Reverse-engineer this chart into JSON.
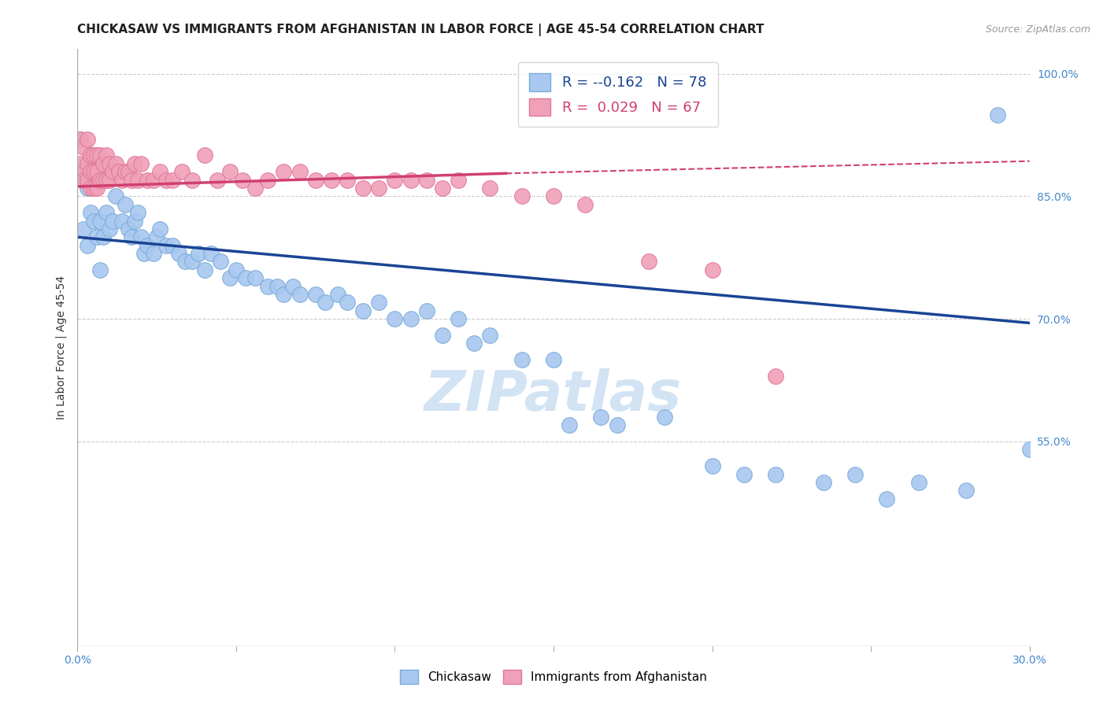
{
  "title": "CHICKASAW VS IMMIGRANTS FROM AFGHANISTAN IN LABOR FORCE | AGE 45-54 CORRELATION CHART",
  "source": "Source: ZipAtlas.com",
  "ylabel": "In Labor Force | Age 45-54",
  "xlabel": "",
  "xlim": [
    0.0,
    0.3
  ],
  "ylim": [
    0.3,
    1.03
  ],
  "xticks": [
    0.0,
    0.05,
    0.1,
    0.15,
    0.2,
    0.25,
    0.3
  ],
  "xticklabels": [
    "0.0%",
    "",
    "",
    "",
    "",
    "",
    "30.0%"
  ],
  "yticks_right": [
    0.55,
    0.7,
    0.85,
    1.0
  ],
  "ytick_right_labels": [
    "55.0%",
    "70.0%",
    "85.0%",
    "100.0%"
  ],
  "hlines": [
    0.55,
    0.7,
    0.85,
    1.0
  ],
  "legend_blue_r": "-0.162",
  "legend_blue_n": "78",
  "legend_pink_r": "0.029",
  "legend_pink_n": "67",
  "blue_color": "#A8C8F0",
  "pink_color": "#F0A0B8",
  "blue_edge_color": "#7AAAD8",
  "pink_edge_color": "#E07898",
  "blue_line_color": "#1A4494",
  "pink_line_color": "#D04070",
  "blue_trendline": [
    0.0,
    0.8,
    0.3,
    0.695
  ],
  "pink_trendline_solid": [
    0.0,
    0.862,
    0.135,
    0.878
  ],
  "pink_trendline_dashed": [
    0.135,
    0.878,
    0.3,
    0.893
  ],
  "blue_scatter_x": [
    0.001,
    0.002,
    0.002,
    0.003,
    0.003,
    0.004,
    0.004,
    0.005,
    0.005,
    0.006,
    0.006,
    0.007,
    0.007,
    0.008,
    0.009,
    0.01,
    0.011,
    0.012,
    0.013,
    0.014,
    0.015,
    0.016,
    0.017,
    0.018,
    0.019,
    0.02,
    0.021,
    0.022,
    0.024,
    0.025,
    0.026,
    0.028,
    0.03,
    0.032,
    0.034,
    0.036,
    0.038,
    0.04,
    0.042,
    0.045,
    0.048,
    0.05,
    0.053,
    0.056,
    0.06,
    0.063,
    0.065,
    0.068,
    0.07,
    0.075,
    0.078,
    0.082,
    0.085,
    0.09,
    0.095,
    0.1,
    0.105,
    0.11,
    0.115,
    0.12,
    0.125,
    0.13,
    0.14,
    0.15,
    0.155,
    0.165,
    0.17,
    0.185,
    0.2,
    0.21,
    0.22,
    0.235,
    0.245,
    0.255,
    0.265,
    0.28,
    0.29,
    0.3
  ],
  "blue_scatter_y": [
    0.92,
    0.87,
    0.81,
    0.86,
    0.79,
    0.87,
    0.83,
    0.88,
    0.82,
    0.87,
    0.8,
    0.82,
    0.76,
    0.8,
    0.83,
    0.81,
    0.82,
    0.85,
    0.88,
    0.82,
    0.84,
    0.81,
    0.8,
    0.82,
    0.83,
    0.8,
    0.78,
    0.79,
    0.78,
    0.8,
    0.81,
    0.79,
    0.79,
    0.78,
    0.77,
    0.77,
    0.78,
    0.76,
    0.78,
    0.77,
    0.75,
    0.76,
    0.75,
    0.75,
    0.74,
    0.74,
    0.73,
    0.74,
    0.73,
    0.73,
    0.72,
    0.73,
    0.72,
    0.71,
    0.72,
    0.7,
    0.7,
    0.71,
    0.68,
    0.7,
    0.67,
    0.68,
    0.65,
    0.65,
    0.57,
    0.58,
    0.57,
    0.58,
    0.52,
    0.51,
    0.51,
    0.5,
    0.51,
    0.48,
    0.5,
    0.49,
    0.95,
    0.54
  ],
  "pink_scatter_x": [
    0.001,
    0.001,
    0.002,
    0.002,
    0.002,
    0.003,
    0.003,
    0.003,
    0.004,
    0.004,
    0.004,
    0.005,
    0.005,
    0.005,
    0.006,
    0.006,
    0.006,
    0.007,
    0.007,
    0.008,
    0.008,
    0.009,
    0.009,
    0.01,
    0.01,
    0.011,
    0.012,
    0.013,
    0.014,
    0.015,
    0.016,
    0.017,
    0.018,
    0.019,
    0.02,
    0.022,
    0.024,
    0.026,
    0.028,
    0.03,
    0.033,
    0.036,
    0.04,
    0.044,
    0.048,
    0.052,
    0.056,
    0.06,
    0.065,
    0.07,
    0.075,
    0.08,
    0.085,
    0.09,
    0.095,
    0.1,
    0.105,
    0.11,
    0.115,
    0.12,
    0.13,
    0.14,
    0.15,
    0.16,
    0.18,
    0.2,
    0.22
  ],
  "pink_scatter_y": [
    0.89,
    0.92,
    0.88,
    0.91,
    0.87,
    0.89,
    0.92,
    0.87,
    0.9,
    0.88,
    0.86,
    0.9,
    0.88,
    0.86,
    0.9,
    0.88,
    0.86,
    0.9,
    0.87,
    0.89,
    0.87,
    0.9,
    0.87,
    0.89,
    0.87,
    0.88,
    0.89,
    0.88,
    0.87,
    0.88,
    0.88,
    0.87,
    0.89,
    0.87,
    0.89,
    0.87,
    0.87,
    0.88,
    0.87,
    0.87,
    0.88,
    0.87,
    0.9,
    0.87,
    0.88,
    0.87,
    0.86,
    0.87,
    0.88,
    0.88,
    0.87,
    0.87,
    0.87,
    0.86,
    0.86,
    0.87,
    0.87,
    0.87,
    0.86,
    0.87,
    0.86,
    0.85,
    0.85,
    0.84,
    0.77,
    0.76,
    0.63
  ],
  "watermark": "ZIPatlas",
  "watermark_color": "#C0D8F0",
  "background_color": "#FFFFFF",
  "title_color": "#222222",
  "axis_color": "#4488CC",
  "grid_color": "#CCCCCC",
  "title_fontsize": 11,
  "label_fontsize": 10,
  "tick_fontsize": 10
}
